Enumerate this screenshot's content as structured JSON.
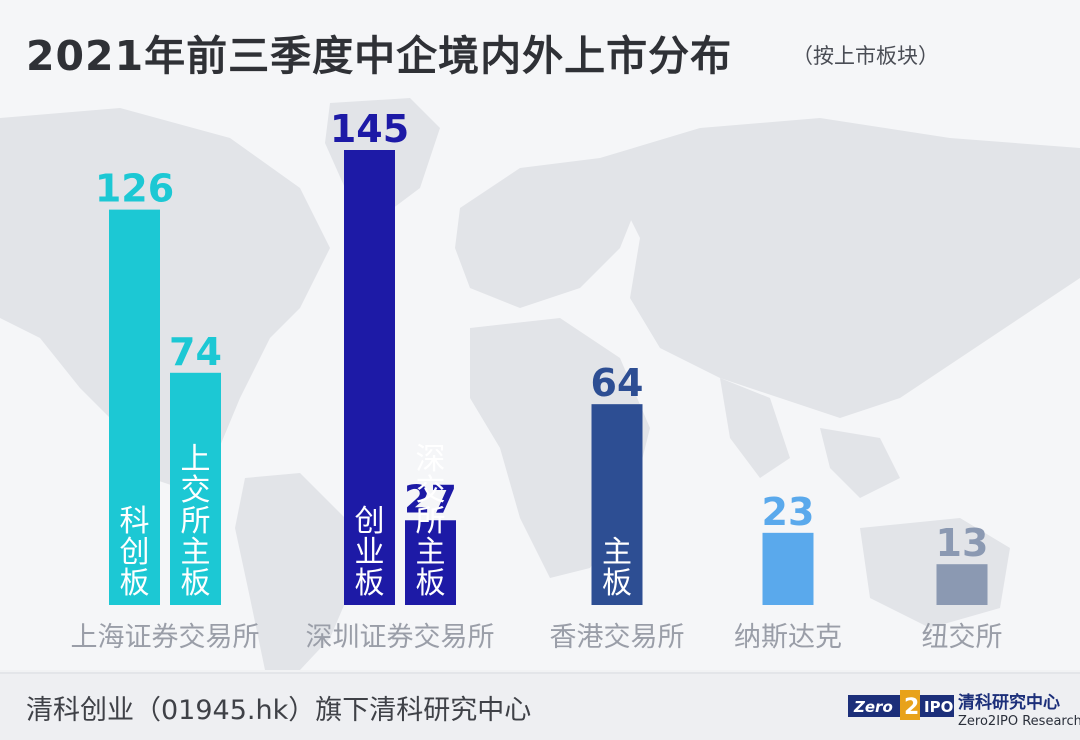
{
  "header": {
    "title": "2021年前三季度中企境内外上市分布",
    "subtitle": "（按上市板块）"
  },
  "footer": {
    "source": "清科创业（01945.hk）旗下清科研究中心",
    "logo_text": "Zero2IPO",
    "brand_cn": "清科研究中心",
    "brand_en": "Zero2IPO Research"
  },
  "colors": {
    "kechuang": "#1cc8d4",
    "sse_main": "#1cc8d4",
    "chinext": "#1d1aa6",
    "szse_main": "#1d1aa6",
    "hkex": "#2d4e93",
    "nasdaq": "#5aa9ec",
    "nyse": "#8b99b2"
  },
  "chart_data": {
    "type": "bar",
    "title": "2021年前三季度中企境内外上市分布",
    "subtitle": "（按上市板块）",
    "ylim": [
      0,
      145
    ],
    "grid": false,
    "legend": "none",
    "groups": [
      {
        "name": "上海证券交易所",
        "bars": [
          {
            "label": "科创板",
            "value": 126,
            "color": "#1cc8d4"
          },
          {
            "label": "上交所主板",
            "value": 74,
            "color": "#1cc8d4"
          }
        ]
      },
      {
        "name": "深圳证券交易所",
        "bars": [
          {
            "label": "创业板",
            "value": 145,
            "color": "#1d1aa6"
          },
          {
            "label": "深交所主板",
            "value": 27,
            "color": "#1d1aa6"
          }
        ]
      },
      {
        "name": "香港交易所",
        "bars": [
          {
            "label": "主板",
            "value": 64,
            "color": "#2d4e93"
          }
        ]
      },
      {
        "name": "纳斯达克",
        "bars": [
          {
            "label": "",
            "value": 23,
            "color": "#5aa9ec"
          }
        ]
      },
      {
        "name": "纽交所",
        "bars": [
          {
            "label": "",
            "value": 13,
            "color": "#8b99b2"
          }
        ]
      }
    ]
  }
}
